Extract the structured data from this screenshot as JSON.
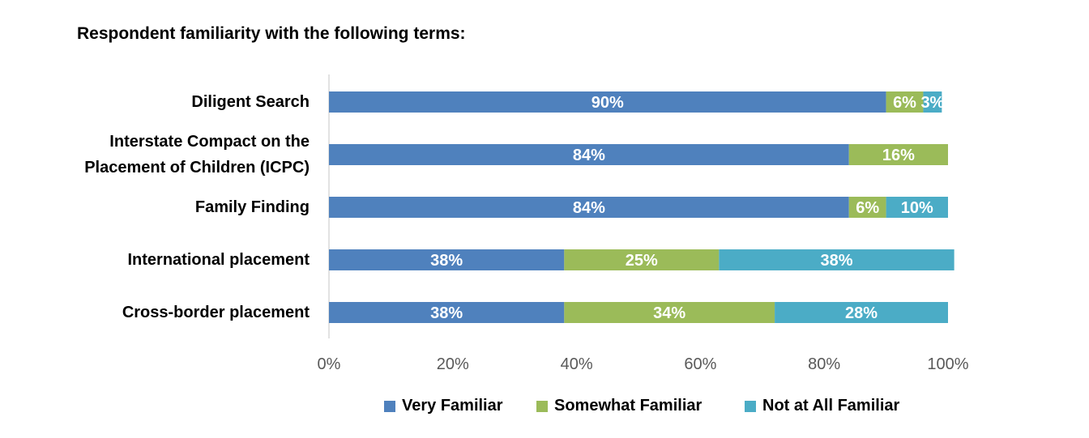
{
  "chart_data": {
    "type": "bar",
    "orientation": "horizontal",
    "stacked": true,
    "title": "Respondent familiarity with the following terms:",
    "categories": [
      [
        "Diligent Search"
      ],
      [
        "Interstate Compact on the",
        "Placement of Children (ICPC)"
      ],
      [
        "Family Finding"
      ],
      [
        "International placement"
      ],
      [
        "Cross-border placement"
      ]
    ],
    "series": [
      {
        "name": "Very Familiar",
        "color": "#4f81bd",
        "values": [
          90,
          84,
          84,
          38,
          38
        ]
      },
      {
        "name": "Somewhat Familiar",
        "color": "#9bbb59",
        "values": [
          6,
          16,
          6,
          25,
          34
        ]
      },
      {
        "name": "Not at All Familiar",
        "color": "#4bacc6",
        "values": [
          3,
          0,
          10,
          38,
          28
        ]
      }
    ],
    "value_suffix": "%",
    "xlim": [
      0,
      100
    ],
    "xticks": [
      "0%",
      "20%",
      "40%",
      "60%",
      "80%",
      "100%"
    ],
    "grid": false,
    "legend": "bottom"
  }
}
